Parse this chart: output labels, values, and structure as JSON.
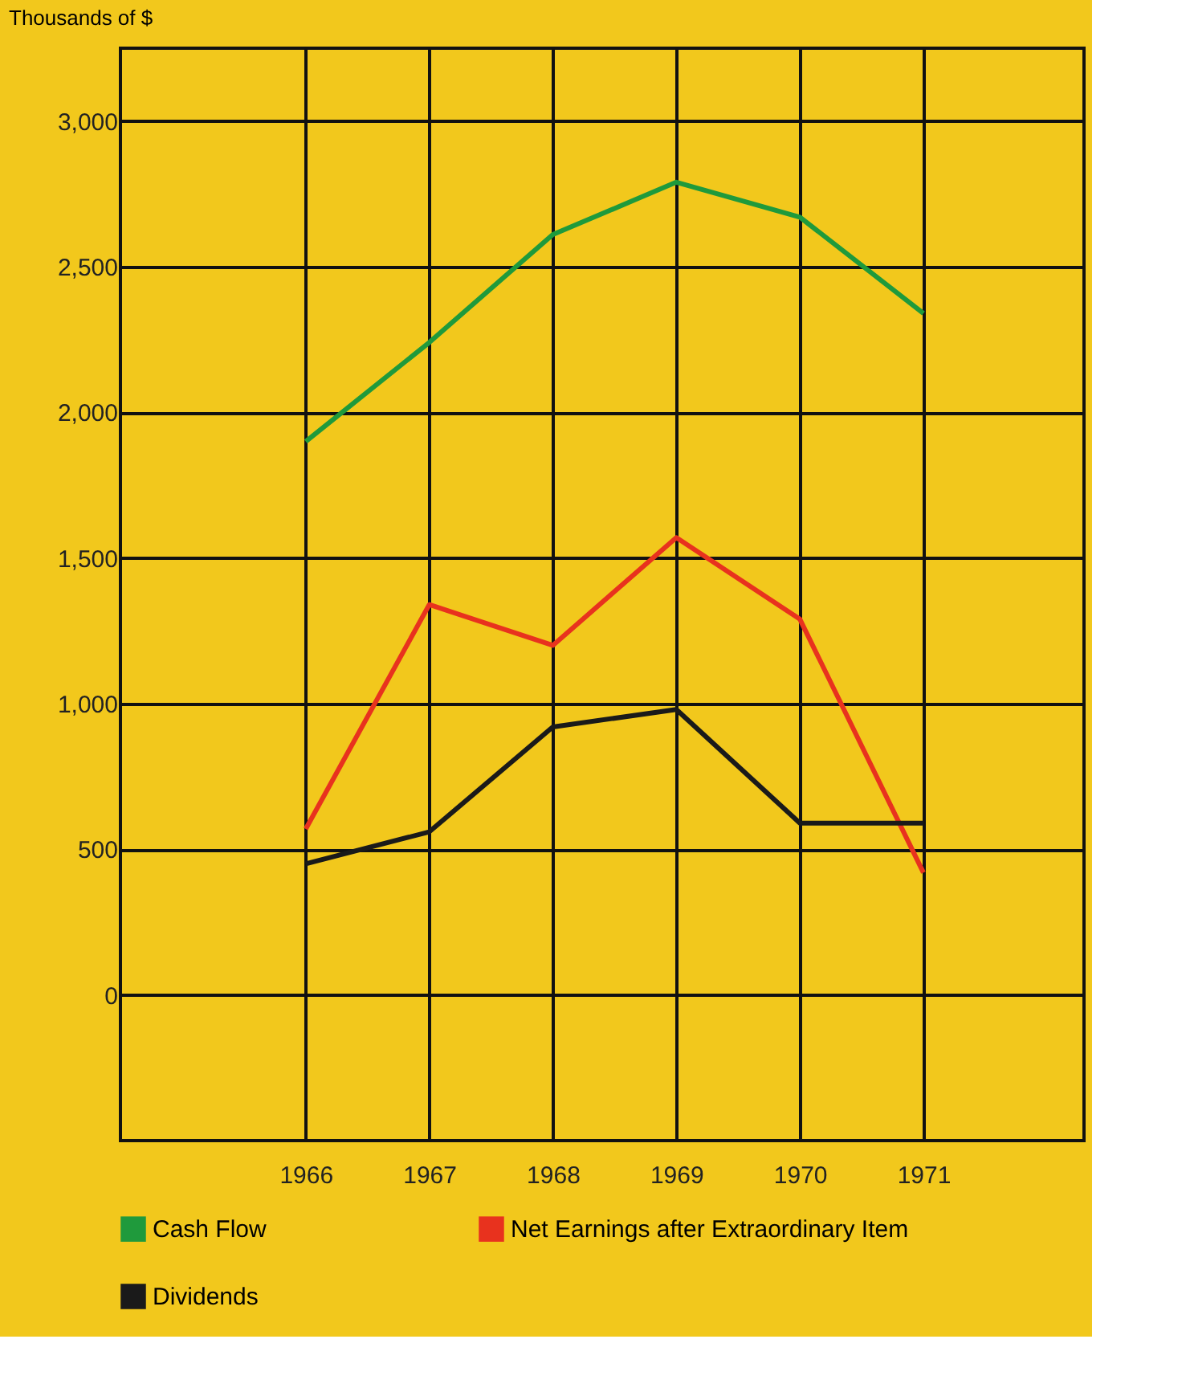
{
  "chart_data": {
    "type": "line",
    "ylabel": "Thousands of $",
    "x": [
      1966,
      1967,
      1968,
      1969,
      1970,
      1971
    ],
    "series": [
      {
        "name": "Cash Flow",
        "color": "#1f9a3c",
        "values": [
          1900,
          2240,
          2610,
          2790,
          2670,
          2340
        ]
      },
      {
        "name": "Net Earnings after Extraordinary Item",
        "color": "#e8321e",
        "values": [
          570,
          1340,
          1200,
          1570,
          1290,
          420
        ]
      },
      {
        "name": "Dividends",
        "color": "#1a1a1a",
        "values": [
          450,
          560,
          920,
          980,
          590,
          590
        ]
      }
    ],
    "xlim": [
      1964.5,
      1972.3
    ],
    "xticks": [
      1966,
      1967,
      1968,
      1969,
      1970,
      1971
    ],
    "ylim": [
      -500,
      3250
    ],
    "yticks": [
      0,
      500,
      {
        "value": 1000,
        "label": "1,000"
      },
      {
        "value": 1500,
        "label": "1,500"
      },
      {
        "value": 2000,
        "label": "2,000"
      },
      {
        "value": 2500,
        "label": "2,500"
      },
      {
        "value": 3000,
        "label": "3,000"
      }
    ],
    "grid": true,
    "legend": "bottom",
    "marker": "none",
    "line_style": "solid"
  }
}
